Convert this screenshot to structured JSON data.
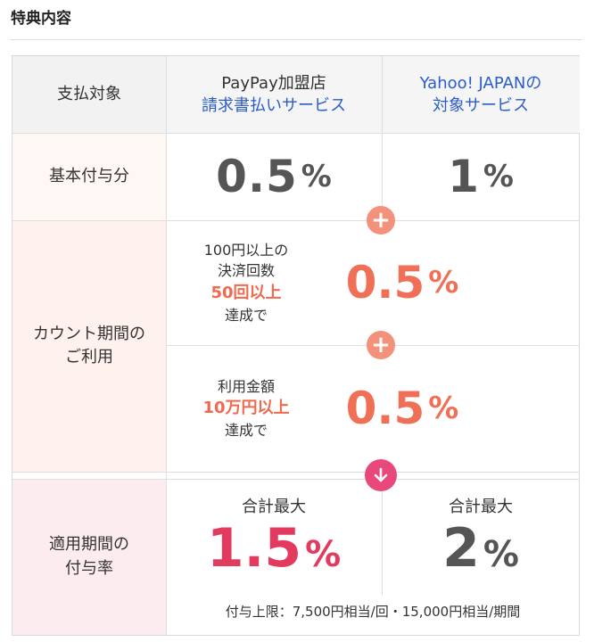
{
  "section": {
    "title": "特典内容"
  },
  "header": {
    "label": "支払対象",
    "col1": {
      "line1": "PayPay加盟店",
      "line2": "請求書払いサービス"
    },
    "col2": {
      "line1": "Yahoo! JAPANの",
      "line2": "対象サービス"
    }
  },
  "base": {
    "label": "基本付与分",
    "col1_value": "0.5",
    "col2_value": "1",
    "percent": "%"
  },
  "count": {
    "label_line1": "カウント期間の",
    "label_line2": "ご利用",
    "cond1": {
      "line1": "100円以上の",
      "line2": "決済回数",
      "highlight": "50回以上",
      "line4": "達成で"
    },
    "cond1_value": "0.5",
    "cond2": {
      "line1": "利用金額",
      "highlight": "10万円以上",
      "line3": "達成で"
    },
    "cond2_value": "0.5",
    "percent": "%"
  },
  "total": {
    "label_line1": "適用期間の",
    "label_line2": "付与率",
    "col1_caption": "合計最大",
    "col1_value": "1.5",
    "col2_caption": "合計最大",
    "col2_value": "2",
    "percent": "%",
    "note": "付与上限：7,500円相当/回・15,000円相当/期間"
  },
  "colors": {
    "blue": "#2a5dc8",
    "orange": "#f07057",
    "pink": "#e9487a",
    "red": "#e33a60"
  },
  "icons": {
    "plus": "plus-circle-icon",
    "down": "arrow-down-circle-icon"
  }
}
